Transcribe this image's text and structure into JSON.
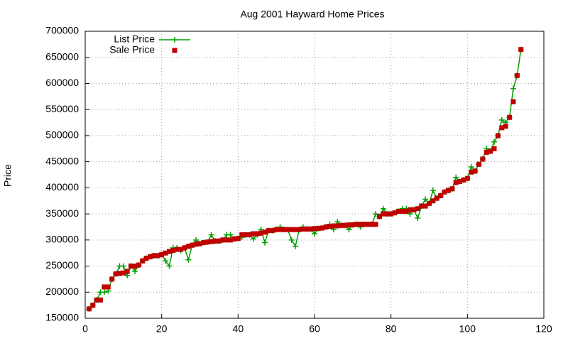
{
  "chart_data": {
    "type": "line",
    "title": "Aug 2001 Hayward Home Prices",
    "y_label": "Price",
    "xlim": [
      0,
      120
    ],
    "xticks": [
      0,
      20,
      40,
      60,
      80,
      100,
      120
    ],
    "ylim": [
      150000,
      700000
    ],
    "yticks": [
      150000,
      200000,
      250000,
      300000,
      350000,
      400000,
      450000,
      500000,
      550000,
      600000,
      650000,
      700000
    ],
    "grid": true,
    "legend": "top-left",
    "x": [
      1,
      2,
      3,
      4,
      5,
      6,
      7,
      8,
      9,
      10,
      11,
      12,
      13,
      14,
      15,
      16,
      17,
      18,
      19,
      20,
      21,
      22,
      23,
      24,
      25,
      26,
      27,
      28,
      29,
      30,
      31,
      32,
      33,
      34,
      35,
      36,
      37,
      38,
      39,
      40,
      41,
      42,
      43,
      44,
      45,
      46,
      47,
      48,
      49,
      50,
      51,
      52,
      53,
      54,
      55,
      56,
      57,
      58,
      59,
      60,
      61,
      62,
      63,
      64,
      65,
      66,
      67,
      68,
      69,
      70,
      71,
      72,
      73,
      74,
      75,
      76,
      77,
      78,
      79,
      80,
      81,
      82,
      83,
      84,
      85,
      86,
      87,
      88,
      89,
      90,
      91,
      92,
      93,
      94,
      95,
      96,
      97,
      98,
      99,
      100,
      101,
      102,
      103,
      104,
      105,
      106,
      107,
      108,
      109,
      110,
      111,
      112,
      113,
      114
    ],
    "series": [
      {
        "name": "List Price",
        "color": "#00a000",
        "style": "linespoints",
        "values": [
          168000,
          175000,
          185000,
          200000,
          200000,
          202000,
          225000,
          235000,
          250000,
          250000,
          232000,
          250000,
          240000,
          252000,
          260000,
          265000,
          268000,
          270000,
          270000,
          272000,
          260000,
          250000,
          285000,
          285000,
          280000,
          285000,
          262000,
          290000,
          300000,
          293000,
          295000,
          296000,
          310000,
          298000,
          298000,
          300000,
          310000,
          310000,
          302000,
          303000,
          305000,
          310000,
          310000,
          302000,
          310000,
          320000,
          295000,
          318000,
          318000,
          320000,
          325000,
          320000,
          320000,
          300000,
          288000,
          320000,
          325000,
          321000,
          321000,
          312000,
          322000,
          323000,
          325000,
          330000,
          320000,
          335000,
          328000,
          328000,
          320000,
          329000,
          330000,
          325000,
          330000,
          330000,
          330000,
          350000,
          345000,
          360000,
          350000,
          350000,
          352000,
          355000,
          360000,
          360000,
          350000,
          358000,
          342000,
          365000,
          378000,
          370000,
          395000,
          380000,
          385000,
          392000,
          395000,
          398000,
          420000,
          412000,
          415000,
          418000,
          440000,
          432000,
          445000,
          455000,
          475000,
          470000,
          488000,
          500000,
          530000,
          525000,
          535000,
          590000,
          615000,
          665000
        ]
      },
      {
        "name": "Sale Price",
        "color": "#c00000",
        "style": "points",
        "values": [
          168000,
          175000,
          185000,
          185000,
          210000,
          210000,
          225000,
          235000,
          236000,
          237000,
          240000,
          250000,
          250000,
          252000,
          260000,
          265000,
          268000,
          270000,
          270000,
          272000,
          275000,
          278000,
          280000,
          282000,
          282000,
          285000,
          288000,
          290000,
          292000,
          293000,
          295000,
          296000,
          297000,
          298000,
          298000,
          300000,
          300000,
          300000,
          302000,
          303000,
          310000,
          310000,
          310000,
          312000,
          312000,
          313000,
          315000,
          318000,
          318000,
          320000,
          320000,
          320000,
          320000,
          320000,
          320000,
          320000,
          321000,
          321000,
          321000,
          322000,
          322000,
          323000,
          325000,
          326000,
          327000,
          327000,
          328000,
          328000,
          329000,
          329000,
          330000,
          330000,
          330000,
          330000,
          330000,
          330000,
          345000,
          350000,
          350000,
          350000,
          352000,
          355000,
          355000,
          355000,
          358000,
          358000,
          360000,
          365000,
          365000,
          370000,
          375000,
          380000,
          385000,
          392000,
          395000,
          398000,
          410000,
          412000,
          415000,
          418000,
          430000,
          432000,
          445000,
          455000,
          468000,
          470000,
          475000,
          500000,
          515000,
          518000,
          535000,
          565000,
          615000,
          665000
        ]
      }
    ]
  }
}
